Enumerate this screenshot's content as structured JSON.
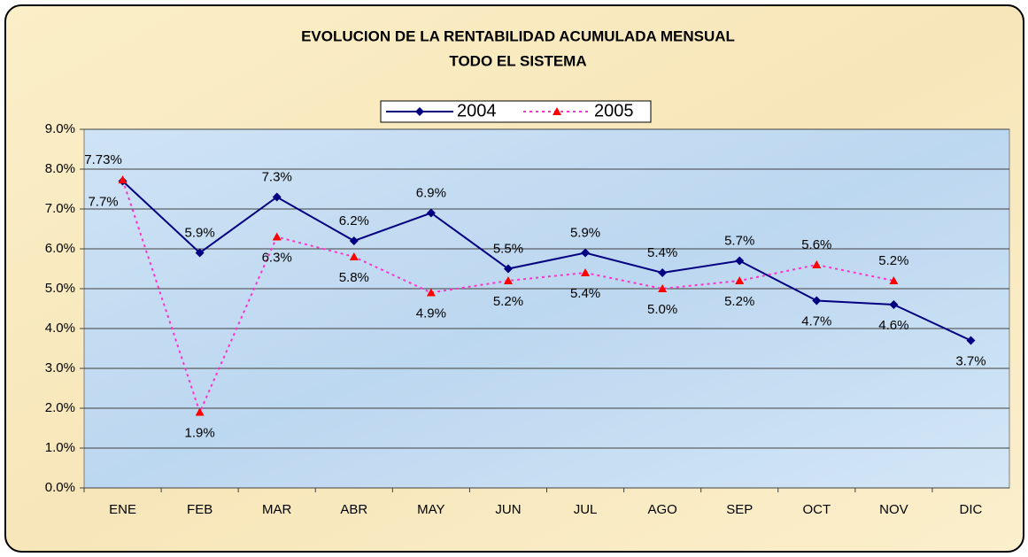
{
  "chart_data": {
    "type": "line",
    "title": "EVOLUCION DE LA RENTABILIDAD ACUMULADA MENSUAL",
    "subtitle": "TODO EL SISTEMA",
    "categories": [
      "ENE",
      "FEB",
      "MAR",
      "ABR",
      "MAY",
      "JUN",
      "JUL",
      "AGO",
      "SEP",
      "OCT",
      "NOV",
      "DIC"
    ],
    "series": [
      {
        "name": "2004",
        "color": "#000080",
        "marker_color": "#000080",
        "marker": "diamond",
        "dash": "solid",
        "values": [
          7.7,
          5.9,
          7.3,
          6.2,
          6.9,
          5.5,
          5.9,
          5.4,
          5.7,
          4.7,
          4.6,
          3.7
        ],
        "value_labels": [
          "7.7%",
          "5.9%",
          "7.3%",
          "6.2%",
          "6.9%",
          "5.5%",
          "5.9%",
          "5.4%",
          "5.7%",
          "4.7%",
          "4.6%",
          "3.7%"
        ]
      },
      {
        "name": "2005",
        "color": "#ff33cc",
        "marker_color": "#ff0000",
        "marker": "triangle",
        "dash": "dotted",
        "values": [
          7.73,
          1.9,
          6.3,
          5.8,
          4.9,
          5.2,
          5.4,
          5.0,
          5.2,
          5.6,
          5.2,
          null
        ],
        "value_labels": [
          "7.73%",
          "1.9%",
          "6.3%",
          "5.8%",
          "4.9%",
          "5.2%",
          "5.4%",
          "5.0%",
          "5.2%",
          "5.6%",
          "5.2%",
          null
        ]
      }
    ],
    "ylim": [
      0,
      9
    ],
    "yticks": [
      {
        "value": 0,
        "label": "0.0%"
      },
      {
        "value": 1,
        "label": "1.0%"
      },
      {
        "value": 2,
        "label": "2.0%"
      },
      {
        "value": 3,
        "label": "3.0%"
      },
      {
        "value": 4,
        "label": "4.0%"
      },
      {
        "value": 5,
        "label": "5.0%"
      },
      {
        "value": 6,
        "label": "6.0%"
      },
      {
        "value": 7,
        "label": "7.0%"
      },
      {
        "value": 8,
        "label": "8.0%"
      },
      {
        "value": 9,
        "label": "9.0%"
      }
    ],
    "grid": true,
    "legend": "top"
  }
}
